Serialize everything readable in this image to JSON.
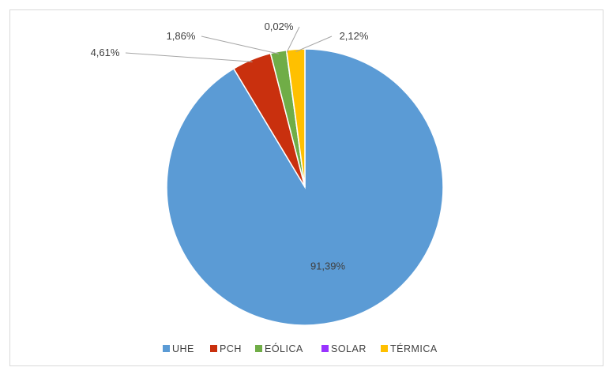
{
  "chart_data": {
    "type": "pie",
    "title": "",
    "legend_position": "bottom",
    "slices": [
      {
        "name": "UHE",
        "value": 91.39,
        "label": "91,39%",
        "color": "#5B9BD5"
      },
      {
        "name": "PCH",
        "value": 4.61,
        "label": "4,61%",
        "color": "#C9300E"
      },
      {
        "name": "EÓLICA",
        "value": 1.86,
        "label": "1,86%",
        "color": "#70AD47"
      },
      {
        "name": "SOLAR",
        "value": 0.02,
        "label": "0,02%",
        "color": "#9933FF"
      },
      {
        "name": "TÉRMICA",
        "value": 2.12,
        "label": "2,12%",
        "color": "#FFC000"
      }
    ]
  }
}
